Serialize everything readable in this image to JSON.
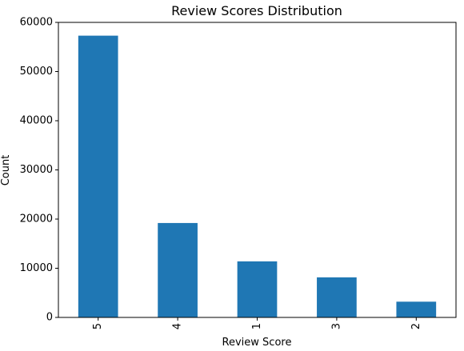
{
  "chart_data": {
    "type": "bar",
    "title": "Review Scores Distribution",
    "xlabel": "Review Score",
    "ylabel": "Count",
    "categories": [
      "5",
      "4",
      "1",
      "3",
      "2"
    ],
    "values": [
      57300,
      19200,
      11400,
      8150,
      3200
    ],
    "ylim": [
      0,
      60000
    ],
    "yticks": [
      0,
      10000,
      20000,
      30000,
      40000,
      50000,
      60000
    ],
    "ytick_labels": [
      "0",
      "10000",
      "20000",
      "30000",
      "40000",
      "50000",
      "60000"
    ],
    "bar_color": "#1f77b4",
    "grid": false,
    "x_tick_rotation": "vertical"
  }
}
